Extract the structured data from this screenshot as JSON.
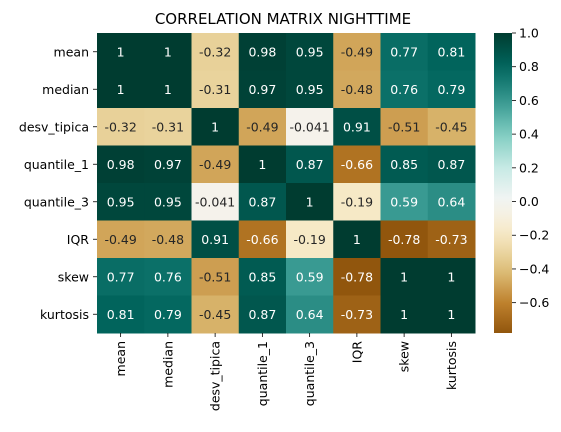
{
  "chart_data": {
    "type": "heatmap",
    "title": "CORRELATION MATRIX NIGHTTIME",
    "x_labels": [
      "mean",
      "median",
      "desv_tipica",
      "quantile_1",
      "quantile_3",
      "IQR",
      "skew",
      "kurtosis"
    ],
    "y_labels": [
      "mean",
      "median",
      "desv_tipica",
      "quantile_1",
      "quantile_3",
      "IQR",
      "skew",
      "kurtosis"
    ],
    "values": [
      [
        1,
        1,
        -0.32,
        0.98,
        0.95,
        -0.49,
        0.77,
        0.81
      ],
      [
        1,
        1,
        -0.31,
        0.97,
        0.95,
        -0.48,
        0.76,
        0.79
      ],
      [
        -0.32,
        -0.31,
        1,
        -0.49,
        -0.041,
        0.91,
        -0.51,
        -0.45
      ],
      [
        0.98,
        0.97,
        -0.49,
        1,
        0.87,
        -0.66,
        0.85,
        0.87
      ],
      [
        0.95,
        0.95,
        -0.041,
        0.87,
        1,
        -0.19,
        0.59,
        0.64
      ],
      [
        -0.49,
        -0.48,
        0.91,
        -0.66,
        -0.19,
        1,
        -0.78,
        -0.73
      ],
      [
        0.77,
        0.76,
        -0.51,
        0.85,
        0.59,
        -0.78,
        1,
        1
      ],
      [
        0.81,
        0.79,
        -0.45,
        0.87,
        0.64,
        -0.73,
        1,
        1
      ]
    ],
    "annotations": [
      [
        "1",
        "1",
        "-0.32",
        "0.98",
        "0.95",
        "-0.49",
        "0.77",
        "0.81"
      ],
      [
        "1",
        "1",
        "-0.31",
        "0.97",
        "0.95",
        "-0.48",
        "0.76",
        "0.79"
      ],
      [
        "-0.32",
        "-0.31",
        "1",
        "-0.49",
        "-0.041",
        "0.91",
        "-0.51",
        "-0.45"
      ],
      [
        "0.98",
        "0.97",
        "-0.49",
        "1",
        "0.87",
        "-0.66",
        "0.85",
        "0.87"
      ],
      [
        "0.95",
        "0.95",
        "-0.041",
        "0.87",
        "1",
        "-0.19",
        "0.59",
        "0.64"
      ],
      [
        "-0.49",
        "-0.48",
        "0.91",
        "-0.66",
        "-0.19",
        "1",
        "-0.78",
        "-0.73"
      ],
      [
        "0.77",
        "0.76",
        "-0.51",
        "0.85",
        "0.59",
        "-0.78",
        "1",
        "1"
      ],
      [
        "0.81",
        "0.79",
        "-0.45",
        "0.87",
        "0.64",
        "-0.73",
        "1",
        "1"
      ]
    ],
    "colormap": "BrBG",
    "color_range": [
      -0.78,
      1
    ],
    "colorbar_ticks": [
      1.0,
      0.8,
      0.6,
      0.4,
      0.2,
      0.0,
      -0.2,
      -0.4,
      -0.6
    ],
    "colorbar_tick_labels": [
      "1.0",
      "0.8",
      "0.6",
      "0.4",
      "0.2",
      "0.0",
      "−0.2",
      "−0.4",
      "−0.6"
    ]
  }
}
